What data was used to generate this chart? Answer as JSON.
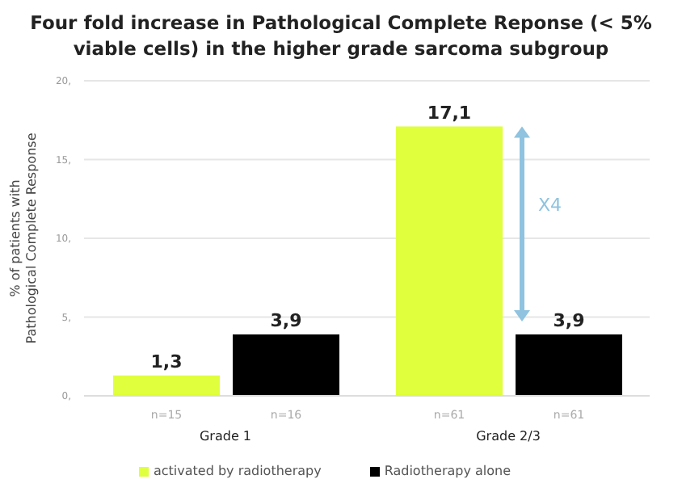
{
  "chart_data": {
    "type": "bar",
    "title": "Four fold increase in Pathological Complete Reponse (< 5% viable cells) in the higher grade sarcoma subgroup",
    "ylabel": "% of patients with Pathological Complete Response",
    "categories": [
      "Grade 1",
      "Grade 2/3"
    ],
    "series": [
      {
        "name": "activated by radiotherapy",
        "color": "#e0ff3c",
        "values": [
          1.3,
          17.1
        ],
        "value_labels": [
          "1,3",
          "17,1"
        ]
      },
      {
        "name": "Radiotherapy alone",
        "color": "#000000",
        "values": [
          3.9,
          3.9
        ],
        "value_labels": [
          "3,9",
          "3,9"
        ]
      }
    ],
    "ylim": [
      0,
      20
    ],
    "yticks": [
      {
        "value": 0,
        "label": "0,"
      },
      {
        "value": 5,
        "label": "5,"
      },
      {
        "value": 10,
        "label": "10,"
      },
      {
        "value": 15,
        "label": "15,"
      },
      {
        "value": 20,
        "label": "20,"
      }
    ],
    "grid": "y",
    "legend": "bottom",
    "annotations": [
      "n=15",
      "n=16",
      "n=61",
      "n=61",
      "X4"
    ]
  }
}
